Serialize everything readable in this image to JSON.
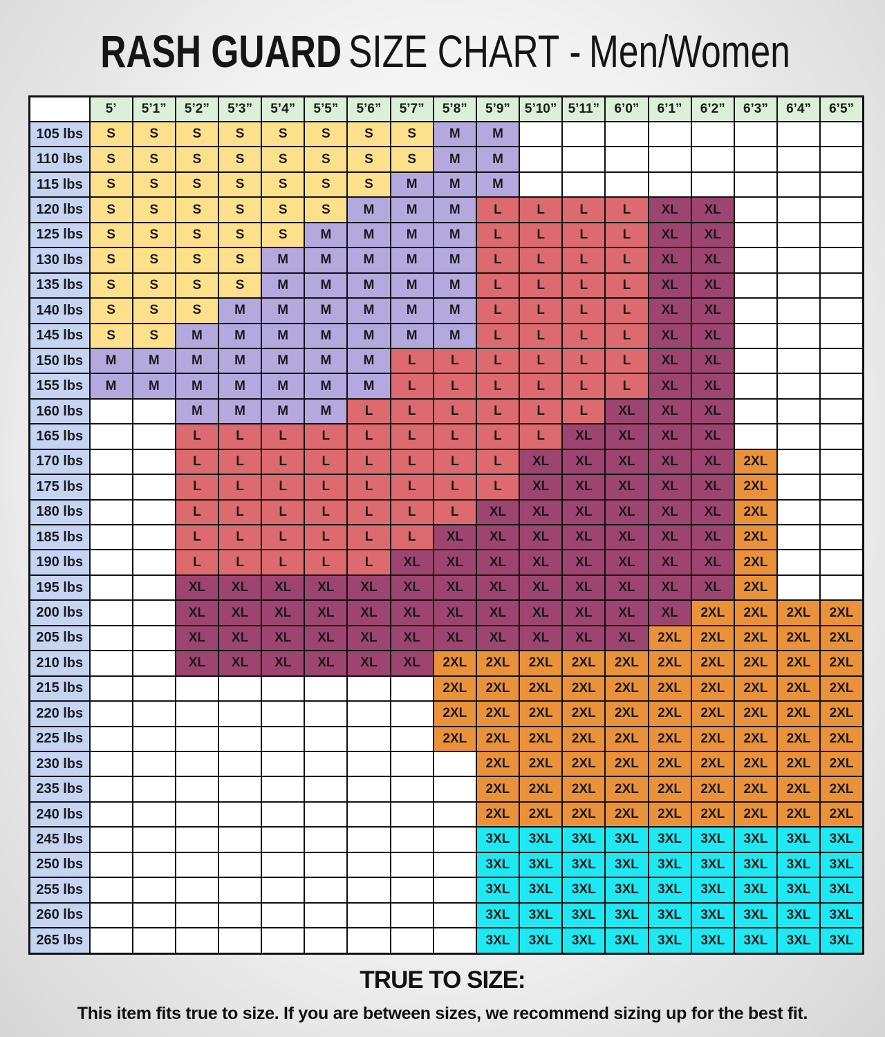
{
  "header": {
    "title_bold": "RASH GUARD",
    "title_rest": "SIZE CHART",
    "separator": "-",
    "audience": "Men/Women"
  },
  "table": {
    "colors": {
      "S": "#fde08c",
      "M": "#b5a8df",
      "L": "#dc6a6e",
      "XL": "#9e4470",
      "2XL": "#ea923a",
      "3XL": "#1ee9f3"
    },
    "columns": [
      "5’",
      "5’1”",
      "5’2”",
      "5’3”",
      "5’4”",
      "5’5”",
      "5’6”",
      "5’7”",
      "5’8”",
      "5’9”",
      "5’10”",
      "5’11”",
      "6’0”",
      "6’1”",
      "6’2”",
      "6’3”",
      "6’4”",
      "6’5”"
    ],
    "rows": [
      {
        "weight": "105 lbs",
        "cells": [
          "S",
          "S",
          "S",
          "S",
          "S",
          "S",
          "S",
          "S",
          "M",
          "M",
          null,
          null,
          null,
          null,
          null,
          null,
          null,
          null
        ]
      },
      {
        "weight": "110 lbs",
        "cells": [
          "S",
          "S",
          "S",
          "S",
          "S",
          "S",
          "S",
          "S",
          "M",
          "M",
          null,
          null,
          null,
          null,
          null,
          null,
          null,
          null
        ]
      },
      {
        "weight": "115 lbs",
        "cells": [
          "S",
          "S",
          "S",
          "S",
          "S",
          "S",
          "S",
          "M",
          "M",
          "M",
          null,
          null,
          null,
          null,
          null,
          null,
          null,
          null
        ]
      },
      {
        "weight": "120 lbs",
        "cells": [
          "S",
          "S",
          "S",
          "S",
          "S",
          "S",
          "M",
          "M",
          "M",
          "L",
          "L",
          "L",
          "L",
          "XL",
          "XL",
          null,
          null,
          null
        ]
      },
      {
        "weight": "125 lbs",
        "cells": [
          "S",
          "S",
          "S",
          "S",
          "S",
          "M",
          "M",
          "M",
          "M",
          "L",
          "L",
          "L",
          "L",
          "XL",
          "XL",
          null,
          null,
          null
        ]
      },
      {
        "weight": "130 lbs",
        "cells": [
          "S",
          "S",
          "S",
          "S",
          "M",
          "M",
          "M",
          "M",
          "M",
          "L",
          "L",
          "L",
          "L",
          "XL",
          "XL",
          null,
          null,
          null
        ]
      },
      {
        "weight": "135 lbs",
        "cells": [
          "S",
          "S",
          "S",
          "S",
          "M",
          "M",
          "M",
          "M",
          "M",
          "L",
          "L",
          "L",
          "L",
          "XL",
          "XL",
          null,
          null,
          null
        ]
      },
      {
        "weight": "140 lbs",
        "cells": [
          "S",
          "S",
          "S",
          "M",
          "M",
          "M",
          "M",
          "M",
          "M",
          "L",
          "L",
          "L",
          "L",
          "XL",
          "XL",
          null,
          null,
          null
        ]
      },
      {
        "weight": "145 lbs",
        "cells": [
          "S",
          "S",
          "M",
          "M",
          "M",
          "M",
          "M",
          "M",
          "M",
          "L",
          "L",
          "L",
          "L",
          "XL",
          "XL",
          null,
          null,
          null
        ]
      },
      {
        "weight": "150 lbs",
        "cells": [
          "M",
          "M",
          "M",
          "M",
          "M",
          "M",
          "M",
          "L",
          "L",
          "L",
          "L",
          "L",
          "L",
          "XL",
          "XL",
          null,
          null,
          null
        ]
      },
      {
        "weight": "155 lbs",
        "cells": [
          "M",
          "M",
          "M",
          "M",
          "M",
          "M",
          "M",
          "L",
          "L",
          "L",
          "L",
          "L",
          "L",
          "XL",
          "XL",
          null,
          null,
          null
        ]
      },
      {
        "weight": "160 lbs",
        "cells": [
          null,
          null,
          "M",
          "M",
          "M",
          "M",
          "L",
          "L",
          "L",
          "L",
          "L",
          "L",
          "XL",
          "XL",
          "XL",
          null,
          null,
          null
        ]
      },
      {
        "weight": "165 lbs",
        "cells": [
          null,
          null,
          "L",
          "L",
          "L",
          "L",
          "L",
          "L",
          "L",
          "L",
          "L",
          "XL",
          "XL",
          "XL",
          "XL",
          null,
          null,
          null
        ]
      },
      {
        "weight": "170 lbs",
        "cells": [
          null,
          null,
          "L",
          "L",
          "L",
          "L",
          "L",
          "L",
          "L",
          "L",
          "XL",
          "XL",
          "XL",
          "XL",
          "XL",
          "2XL",
          null,
          null
        ]
      },
      {
        "weight": "175 lbs",
        "cells": [
          null,
          null,
          "L",
          "L",
          "L",
          "L",
          "L",
          "L",
          "L",
          "L",
          "XL",
          "XL",
          "XL",
          "XL",
          "XL",
          "2XL",
          null,
          null
        ]
      },
      {
        "weight": "180 lbs",
        "cells": [
          null,
          null,
          "L",
          "L",
          "L",
          "L",
          "L",
          "L",
          "L",
          "XL",
          "XL",
          "XL",
          "XL",
          "XL",
          "XL",
          "2XL",
          null,
          null
        ]
      },
      {
        "weight": "185 lbs",
        "cells": [
          null,
          null,
          "L",
          "L",
          "L",
          "L",
          "L",
          "L",
          "XL",
          "XL",
          "XL",
          "XL",
          "XL",
          "XL",
          "XL",
          "2XL",
          null,
          null
        ]
      },
      {
        "weight": "190 lbs",
        "cells": [
          null,
          null,
          "L",
          "L",
          "L",
          "L",
          "L",
          "XL",
          "XL",
          "XL",
          "XL",
          "XL",
          "XL",
          "XL",
          "XL",
          "2XL",
          null,
          null
        ]
      },
      {
        "weight": "195 lbs",
        "cells": [
          null,
          null,
          "XL",
          "XL",
          "XL",
          "XL",
          "XL",
          "XL",
          "XL",
          "XL",
          "XL",
          "XL",
          "XL",
          "XL",
          "XL",
          "2XL",
          null,
          null
        ]
      },
      {
        "weight": "200 lbs",
        "cells": [
          null,
          null,
          "XL",
          "XL",
          "XL",
          "XL",
          "XL",
          "XL",
          "XL",
          "XL",
          "XL",
          "XL",
          "XL",
          "XL",
          "2XL",
          "2XL",
          "2XL",
          "2XL"
        ]
      },
      {
        "weight": "205 lbs",
        "cells": [
          null,
          null,
          "XL",
          "XL",
          "XL",
          "XL",
          "XL",
          "XL",
          "XL",
          "XL",
          "XL",
          "XL",
          "XL",
          "2XL",
          "2XL",
          "2XL",
          "2XL",
          "2XL"
        ]
      },
      {
        "weight": "210 lbs",
        "cells": [
          null,
          null,
          "XL",
          "XL",
          "XL",
          "XL",
          "XL",
          "XL",
          "2XL",
          "2XL",
          "2XL",
          "2XL",
          "2XL",
          "2XL",
          "2XL",
          "2XL",
          "2XL",
          "2XL"
        ]
      },
      {
        "weight": "215 lbs",
        "cells": [
          null,
          null,
          null,
          null,
          null,
          null,
          null,
          null,
          "2XL",
          "2XL",
          "2XL",
          "2XL",
          "2XL",
          "2XL",
          "2XL",
          "2XL",
          "2XL",
          "2XL"
        ]
      },
      {
        "weight": "220 lbs",
        "cells": [
          null,
          null,
          null,
          null,
          null,
          null,
          null,
          null,
          "2XL",
          "2XL",
          "2XL",
          "2XL",
          "2XL",
          "2XL",
          "2XL",
          "2XL",
          "2XL",
          "2XL"
        ]
      },
      {
        "weight": "225 lbs",
        "cells": [
          null,
          null,
          null,
          null,
          null,
          null,
          null,
          null,
          "2XL",
          "2XL",
          "2XL",
          "2XL",
          "2XL",
          "2XL",
          "2XL",
          "2XL",
          "2XL",
          "2XL"
        ]
      },
      {
        "weight": "230 lbs",
        "cells": [
          null,
          null,
          null,
          null,
          null,
          null,
          null,
          null,
          null,
          "2XL",
          "2XL",
          "2XL",
          "2XL",
          "2XL",
          "2XL",
          "2XL",
          "2XL",
          "2XL"
        ]
      },
      {
        "weight": "235 lbs",
        "cells": [
          null,
          null,
          null,
          null,
          null,
          null,
          null,
          null,
          null,
          "2XL",
          "2XL",
          "2XL",
          "2XL",
          "2XL",
          "2XL",
          "2XL",
          "2XL",
          "2XL"
        ]
      },
      {
        "weight": "240 lbs",
        "cells": [
          null,
          null,
          null,
          null,
          null,
          null,
          null,
          null,
          null,
          "2XL",
          "2XL",
          "2XL",
          "2XL",
          "2XL",
          "2XL",
          "2XL",
          "2XL",
          "2XL"
        ]
      },
      {
        "weight": "245 lbs",
        "cells": [
          null,
          null,
          null,
          null,
          null,
          null,
          null,
          null,
          null,
          "3XL",
          "3XL",
          "3XL",
          "3XL",
          "3XL",
          "3XL",
          "3XL",
          "3XL",
          "3XL"
        ]
      },
      {
        "weight": "250 lbs",
        "cells": [
          null,
          null,
          null,
          null,
          null,
          null,
          null,
          null,
          null,
          "3XL",
          "3XL",
          "3XL",
          "3XL",
          "3XL",
          "3XL",
          "3XL",
          "3XL",
          "3XL"
        ]
      },
      {
        "weight": "255 lbs",
        "cells": [
          null,
          null,
          null,
          null,
          null,
          null,
          null,
          null,
          null,
          "3XL",
          "3XL",
          "3XL",
          "3XL",
          "3XL",
          "3XL",
          "3XL",
          "3XL",
          "3XL"
        ]
      },
      {
        "weight": "260 lbs",
        "cells": [
          null,
          null,
          null,
          null,
          null,
          null,
          null,
          null,
          null,
          "3XL",
          "3XL",
          "3XL",
          "3XL",
          "3XL",
          "3XL",
          "3XL",
          "3XL",
          "3XL"
        ]
      },
      {
        "weight": "265 lbs",
        "cells": [
          null,
          null,
          null,
          null,
          null,
          null,
          null,
          null,
          null,
          "3XL",
          "3XL",
          "3XL",
          "3XL",
          "3XL",
          "3XL",
          "3XL",
          "3XL",
          "3XL"
        ]
      }
    ]
  },
  "footer": {
    "heading": "TRUE TO SIZE:",
    "note": "This item fits true to size. If you are between sizes, we recommend sizing up for the best fit."
  }
}
